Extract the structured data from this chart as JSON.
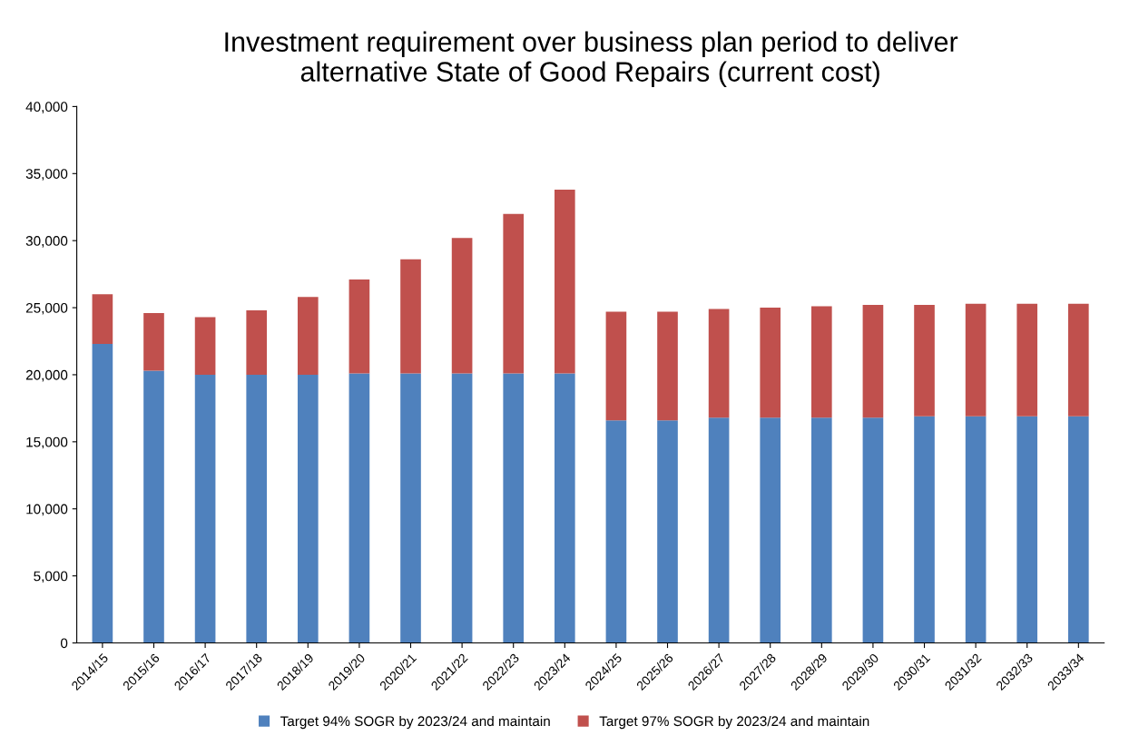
{
  "chart_data": {
    "type": "bar",
    "stacked": true,
    "title": "Investment requirement over business plan period to deliver\nalternative State of Good Repairs (current cost)",
    "categories": [
      "2014/15",
      "2015/16",
      "2016/17",
      "2017/18",
      "2018/19",
      "2019/20",
      "2020/21",
      "2021/22",
      "2022/23",
      "2023/24",
      "2024/25",
      "2025/26",
      "2026/27",
      "2027/28",
      "2028/29",
      "2029/30",
      "2030/31",
      "2031/32",
      "2032/33",
      "2033/34"
    ],
    "series": [
      {
        "name": "Target 94% SOGR by 2023/24 and maintain",
        "color": "#4f81bd",
        "values": [
          22300,
          20300,
          20000,
          20000,
          20000,
          20100,
          20100,
          20100,
          20100,
          20100,
          16600,
          16600,
          16800,
          16800,
          16800,
          16800,
          16900,
          16900,
          16900,
          16900
        ]
      },
      {
        "name": "Target 97% SOGR by 2023/24 and maintain",
        "color": "#c0504d",
        "values": [
          3700,
          4300,
          4300,
          4800,
          5800,
          7000,
          8500,
          10100,
          11900,
          13700,
          8100,
          8100,
          8100,
          8200,
          8300,
          8400,
          8300,
          8400,
          8400,
          8400
        ]
      }
    ],
    "ylim": [
      0,
      40000
    ],
    "yticks": [
      {
        "value": 0,
        "label": "0"
      },
      {
        "value": 5000,
        "label": "5,000"
      },
      {
        "value": 10000,
        "label": "10,000"
      },
      {
        "value": 15000,
        "label": "15,000"
      },
      {
        "value": 20000,
        "label": "20,000"
      },
      {
        "value": 25000,
        "label": "25,000"
      },
      {
        "value": 30000,
        "label": "30,000"
      },
      {
        "value": 35000,
        "label": "35,000"
      },
      {
        "value": 40000,
        "label": "40,000"
      }
    ],
    "grid": false,
    "legend": "bottom"
  }
}
